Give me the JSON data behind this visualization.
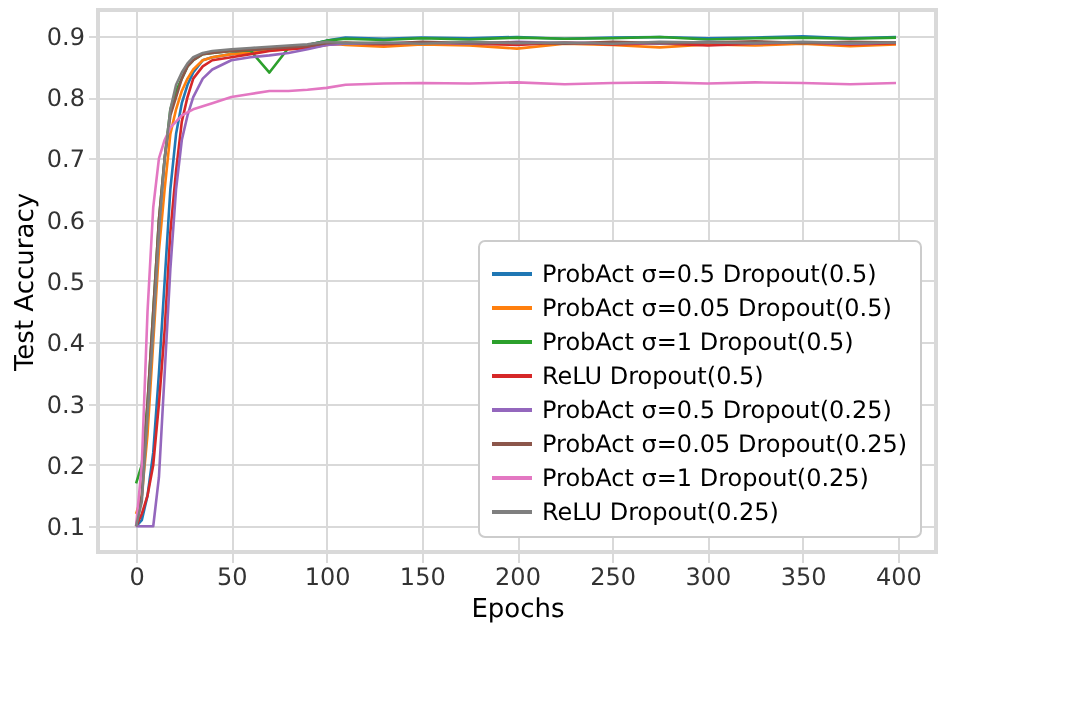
{
  "chart_data": {
    "type": "line",
    "xlabel": "Epochs",
    "ylabel": "Test Accuracy",
    "x": [
      0,
      3,
      6,
      9,
      12,
      15,
      18,
      21,
      24,
      27,
      30,
      35,
      40,
      50,
      60,
      70,
      80,
      90,
      100,
      110,
      130,
      150,
      175,
      200,
      225,
      250,
      275,
      300,
      325,
      350,
      375,
      399
    ],
    "xlim": [
      -20,
      420
    ],
    "ylim": [
      0.058,
      0.942
    ],
    "xticks": [
      0,
      50,
      100,
      150,
      200,
      250,
      300,
      350,
      400
    ],
    "yticks": [
      0.1,
      0.2,
      0.3,
      0.4,
      0.5,
      0.6,
      0.7,
      0.8,
      0.9
    ],
    "grid": true,
    "legend": "bottom right",
    "line_style": "solid",
    "marker": "none",
    "series": [
      {
        "name": "ProbAct σ=0.5 Dropout(0.5)",
        "color": "#1f77b4",
        "values": [
          0.1,
          0.11,
          0.15,
          0.22,
          0.35,
          0.5,
          0.65,
          0.74,
          0.79,
          0.82,
          0.84,
          0.86,
          0.865,
          0.87,
          0.875,
          0.878,
          0.88,
          0.885,
          0.892,
          0.897,
          0.895,
          0.897,
          0.896,
          0.898,
          0.895,
          0.897,
          0.898,
          0.896,
          0.897,
          0.899,
          0.896,
          0.898
        ]
      },
      {
        "name": "ProbAct σ=0.05 Dropout(0.5)",
        "color": "#ff7f0e",
        "values": [
          0.12,
          0.15,
          0.25,
          0.4,
          0.55,
          0.65,
          0.74,
          0.78,
          0.81,
          0.83,
          0.845,
          0.86,
          0.865,
          0.87,
          0.872,
          0.876,
          0.878,
          0.88,
          0.888,
          0.885,
          0.882,
          0.886,
          0.884,
          0.879,
          0.887,
          0.885,
          0.881,
          0.886,
          0.884,
          0.887,
          0.883,
          0.886
        ]
      },
      {
        "name": "ProbAct σ=1 Dropout(0.5)",
        "color": "#2ca02c",
        "values": [
          0.17,
          0.2,
          0.3,
          0.45,
          0.6,
          0.7,
          0.78,
          0.81,
          0.83,
          0.85,
          0.86,
          0.87,
          0.872,
          0.875,
          0.876,
          0.84,
          0.88,
          0.885,
          0.892,
          0.895,
          0.893,
          0.896,
          0.894,
          0.897,
          0.895,
          0.896,
          0.898,
          0.894,
          0.896,
          0.897,
          0.895,
          0.897
        ]
      },
      {
        "name": "ReLU Dropout(0.5)",
        "color": "#d62728",
        "values": [
          0.1,
          0.12,
          0.15,
          0.2,
          0.3,
          0.42,
          0.58,
          0.68,
          0.76,
          0.8,
          0.83,
          0.85,
          0.86,
          0.865,
          0.87,
          0.875,
          0.878,
          0.88,
          0.885,
          0.888,
          0.886,
          0.889,
          0.887,
          0.885,
          0.889,
          0.886,
          0.888,
          0.884,
          0.887,
          0.889,
          0.886,
          0.888
        ]
      },
      {
        "name": "ProbAct σ=0.5 Dropout(0.25)",
        "color": "#9467bd",
        "values": [
          0.1,
          0.1,
          0.1,
          0.1,
          0.18,
          0.35,
          0.52,
          0.65,
          0.73,
          0.77,
          0.8,
          0.83,
          0.845,
          0.86,
          0.865,
          0.868,
          0.872,
          0.878,
          0.885,
          0.887,
          0.888,
          0.889,
          0.887,
          0.89,
          0.888,
          0.889,
          0.887,
          0.89,
          0.888,
          0.889,
          0.887,
          0.889
        ]
      },
      {
        "name": "ProbAct σ=0.05 Dropout(0.25)",
        "color": "#8c564b",
        "values": [
          0.1,
          0.15,
          0.3,
          0.45,
          0.6,
          0.7,
          0.77,
          0.8,
          0.83,
          0.85,
          0.86,
          0.87,
          0.872,
          0.875,
          0.877,
          0.879,
          0.881,
          0.883,
          0.888,
          0.889,
          0.887,
          0.89,
          0.888,
          0.889,
          0.887,
          0.89,
          0.888,
          0.889,
          0.891,
          0.888,
          0.89,
          0.889
        ]
      },
      {
        "name": "ProbAct σ=1 Dropout(0.25)",
        "color": "#e377c2",
        "values": [
          0.1,
          0.2,
          0.45,
          0.62,
          0.7,
          0.73,
          0.75,
          0.76,
          0.77,
          0.775,
          0.78,
          0.785,
          0.79,
          0.8,
          0.805,
          0.81,
          0.81,
          0.812,
          0.815,
          0.82,
          0.822,
          0.823,
          0.822,
          0.824,
          0.821,
          0.823,
          0.824,
          0.822,
          0.824,
          0.823,
          0.821,
          0.823
        ]
      },
      {
        "name": "ReLU Dropout(0.25)",
        "color": "#7f7f7f",
        "values": [
          0.1,
          0.14,
          0.28,
          0.42,
          0.58,
          0.7,
          0.78,
          0.82,
          0.84,
          0.855,
          0.865,
          0.872,
          0.875,
          0.878,
          0.88,
          0.882,
          0.884,
          0.886,
          0.89,
          0.888,
          0.889,
          0.887,
          0.89,
          0.888,
          0.889,
          0.887,
          0.89,
          0.889,
          0.888,
          0.89,
          0.888,
          0.889
        ]
      }
    ]
  }
}
